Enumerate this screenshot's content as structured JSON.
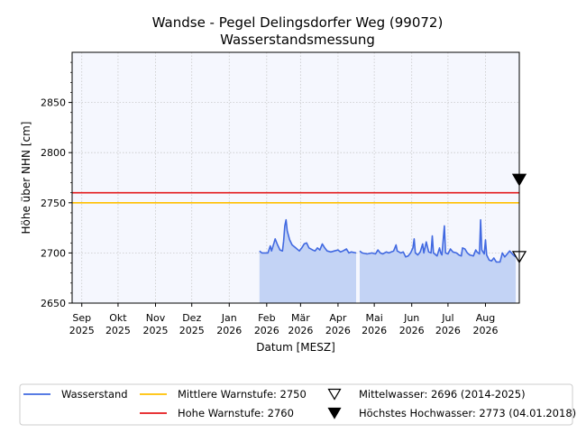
{
  "chart_data": {
    "type": "line",
    "title": "Wandse - Pegel Delingsdorfer Weg (99072)",
    "subtitle": "Wasserstandsmessung",
    "xlabel": "Datum [MESZ]",
    "ylabel": "Höhe über NHN [cm]",
    "xlim": [
      "2025-08-24",
      "2026-08-29"
    ],
    "ylim": [
      2650,
      2900
    ],
    "y_ticks": [
      2650,
      2700,
      2750,
      2800,
      2850
    ],
    "x_ticks": [
      {
        "date": "2025-09-01",
        "month": "Sep",
        "year": "2025"
      },
      {
        "date": "2025-10-01",
        "month": "Okt",
        "year": "2025"
      },
      {
        "date": "2025-11-01",
        "month": "Nov",
        "year": "2025"
      },
      {
        "date": "2025-12-01",
        "month": "Dez",
        "year": "2025"
      },
      {
        "date": "2026-01-01",
        "month": "Jan",
        "year": "2026"
      },
      {
        "date": "2026-02-01",
        "month": "Feb",
        "year": "2026"
      },
      {
        "date": "2026-03-01",
        "month": "Mär",
        "year": "2026"
      },
      {
        "date": "2026-04-01",
        "month": "Apr",
        "year": "2026"
      },
      {
        "date": "2026-05-01",
        "month": "Mai",
        "year": "2026"
      },
      {
        "date": "2026-06-01",
        "month": "Jun",
        "year": "2026"
      },
      {
        "date": "2026-07-01",
        "month": "Jul",
        "year": "2026"
      },
      {
        "date": "2026-08-01",
        "month": "Aug",
        "year": "2026"
      }
    ],
    "grid": true,
    "series": [
      {
        "name": "Wasserstand",
        "color": "#4169e1",
        "fill_color": "#c3d3f5",
        "segments": [
          [
            [
              "2026-01-26",
              2702
            ],
            [
              "2026-01-28",
              2700
            ],
            [
              "2026-01-31",
              2700
            ],
            [
              "2026-02-02",
              2700
            ],
            [
              "2026-02-04",
              2707
            ],
            [
              "2026-02-05",
              2702
            ],
            [
              "2026-02-07",
              2710
            ],
            [
              "2026-02-08",
              2714
            ],
            [
              "2026-02-10",
              2708
            ],
            [
              "2026-02-12",
              2703
            ],
            [
              "2026-02-14",
              2702
            ],
            [
              "2026-02-15",
              2712
            ],
            [
              "2026-02-16",
              2727
            ],
            [
              "2026-02-17",
              2733
            ],
            [
              "2026-02-18",
              2722
            ],
            [
              "2026-02-20",
              2713
            ],
            [
              "2026-02-22",
              2708
            ],
            [
              "2026-02-25",
              2705
            ],
            [
              "2026-02-28",
              2702
            ],
            [
              "2026-03-02",
              2705
            ],
            [
              "2026-03-04",
              2709
            ],
            [
              "2026-03-06",
              2710
            ],
            [
              "2026-03-08",
              2705
            ],
            [
              "2026-03-11",
              2703
            ],
            [
              "2026-03-13",
              2702
            ],
            [
              "2026-03-15",
              2705
            ],
            [
              "2026-03-17",
              2703
            ],
            [
              "2026-03-19",
              2709
            ],
            [
              "2026-03-21",
              2705
            ],
            [
              "2026-03-23",
              2702
            ],
            [
              "2026-03-26",
              2701
            ],
            [
              "2026-03-29",
              2702
            ],
            [
              "2026-04-01",
              2703
            ],
            [
              "2026-04-03",
              2701
            ],
            [
              "2026-04-05",
              2702
            ],
            [
              "2026-04-08",
              2704
            ],
            [
              "2026-04-10",
              2700
            ],
            [
              "2026-04-12",
              2701
            ],
            [
              "2026-04-16",
              2700
            ]
          ],
          [
            [
              "2026-04-19",
              2702
            ],
            [
              "2026-04-21",
              2700
            ],
            [
              "2026-04-25",
              2699
            ],
            [
              "2026-04-29",
              2700
            ],
            [
              "2026-05-02",
              2699
            ],
            [
              "2026-05-04",
              2703
            ],
            [
              "2026-05-06",
              2700
            ],
            [
              "2026-05-08",
              2699
            ],
            [
              "2026-05-11",
              2701
            ],
            [
              "2026-05-13",
              2700
            ],
            [
              "2026-05-17",
              2702
            ],
            [
              "2026-05-19",
              2708
            ],
            [
              "2026-05-20",
              2702
            ],
            [
              "2026-05-23",
              2700
            ],
            [
              "2026-05-25",
              2701
            ],
            [
              "2026-05-27",
              2696
            ],
            [
              "2026-05-29",
              2697
            ],
            [
              "2026-05-31",
              2700
            ],
            [
              "2026-06-02",
              2705
            ],
            [
              "2026-06-03",
              2714
            ],
            [
              "2026-06-04",
              2700
            ],
            [
              "2026-06-06",
              2698
            ],
            [
              "2026-06-08",
              2701
            ],
            [
              "2026-06-10",
              2709
            ],
            [
              "2026-06-11",
              2700
            ],
            [
              "2026-06-13",
              2711
            ],
            [
              "2026-06-15",
              2701
            ],
            [
              "2026-06-17",
              2700
            ],
            [
              "2026-06-18",
              2717
            ],
            [
              "2026-06-19",
              2700
            ],
            [
              "2026-06-22",
              2697
            ],
            [
              "2026-06-24",
              2705
            ],
            [
              "2026-06-25",
              2700
            ],
            [
              "2026-06-26",
              2698
            ],
            [
              "2026-06-28",
              2727
            ],
            [
              "2026-06-29",
              2700
            ],
            [
              "2026-07-01",
              2699
            ],
            [
              "2026-07-03",
              2704
            ],
            [
              "2026-07-05",
              2701
            ],
            [
              "2026-07-08",
              2700
            ],
            [
              "2026-07-10",
              2698
            ],
            [
              "2026-07-12",
              2697
            ],
            [
              "2026-07-13",
              2705
            ],
            [
              "2026-07-15",
              2704
            ],
            [
              "2026-07-17",
              2700
            ],
            [
              "2026-07-19",
              2698
            ],
            [
              "2026-07-22",
              2697
            ],
            [
              "2026-07-24",
              2703
            ],
            [
              "2026-07-25",
              2701
            ],
            [
              "2026-07-27",
              2699
            ],
            [
              "2026-07-28",
              2733
            ],
            [
              "2026-07-29",
              2703
            ],
            [
              "2026-07-31",
              2699
            ],
            [
              "2026-08-01",
              2713
            ],
            [
              "2026-08-02",
              2698
            ],
            [
              "2026-08-04",
              2693
            ],
            [
              "2026-08-06",
              2692
            ],
            [
              "2026-08-08",
              2695
            ],
            [
              "2026-08-10",
              2691
            ],
            [
              "2026-08-13",
              2691
            ],
            [
              "2026-08-15",
              2700
            ],
            [
              "2026-08-17",
              2696
            ],
            [
              "2026-08-19",
              2699
            ],
            [
              "2026-08-21",
              2702
            ],
            [
              "2026-08-24",
              2698
            ],
            [
              "2026-08-26",
              2696
            ]
          ]
        ]
      }
    ],
    "reference_lines": [
      {
        "name": "Mittlere Warnstufe: 2750",
        "value": 2750,
        "color": "#ffc000"
      },
      {
        "name": "Hohe Warnstufe: 2760",
        "value": 2760,
        "color": "#e41a1c"
      }
    ],
    "markers": [
      {
        "name": "Mittelwasser: 2696 (2014-2025)",
        "value": 2696,
        "style": "open-triangle-down",
        "color": "#000000"
      },
      {
        "name": "Höchstes Hochwasser: 2773 (04.01.2018)",
        "value": 2773,
        "style": "filled-triangle-down",
        "color": "#000000"
      }
    ],
    "legend_position": "bottom",
    "plot_background": "#f5f7fe"
  }
}
